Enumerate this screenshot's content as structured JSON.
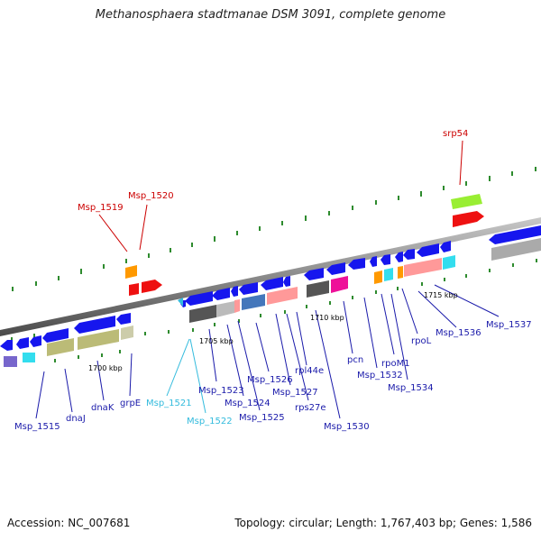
{
  "title": "Methanosphaera stadtmanae DSM 3091, complete genome",
  "footer": {
    "accession": "Accession: NC_007681",
    "summary": "Topology: circular; Length: 1,767,403 bp; Genes: 1,586"
  },
  "colors": {
    "background": "#ffffff",
    "backbone": "#8a8a8a",
    "ticks": "#2e8b2e",
    "label_blue": "#1a1aaa",
    "label_red": "#cc0000",
    "label_cyan": "#33bbdd",
    "gene_blue": "#1616ee",
    "gene_red": "#ee1111",
    "gene_orange": "#ff9900",
    "gene_lime": "#99ee33"
  },
  "scale_labels": [
    {
      "id": "kbp1700",
      "text": "1700 kbp"
    },
    {
      "id": "kbp1705",
      "text": "1705 kbp"
    },
    {
      "id": "kbp1710",
      "text": "1710 kbp"
    },
    {
      "id": "kbp1715",
      "text": "1715 kbp"
    }
  ],
  "gene_labels": [
    {
      "id": "srp54",
      "text": "srp54",
      "color": "red"
    },
    {
      "id": "msp1520",
      "text": "Msp_1520",
      "color": "red"
    },
    {
      "id": "msp1519",
      "text": "Msp_1519",
      "color": "red"
    },
    {
      "id": "msp1515",
      "text": "Msp_1515",
      "color": "blue"
    },
    {
      "id": "dnaJ",
      "text": "dnaJ",
      "color": "blue"
    },
    {
      "id": "dnaK",
      "text": "dnaK",
      "color": "blue"
    },
    {
      "id": "grpE",
      "text": "grpE",
      "color": "blue"
    },
    {
      "id": "msp1521",
      "text": "Msp_1521",
      "color": "cyan"
    },
    {
      "id": "msp1522",
      "text": "Msp_1522",
      "color": "cyan"
    },
    {
      "id": "msp1523",
      "text": "Msp_1523",
      "color": "blue"
    },
    {
      "id": "msp1524",
      "text": "Msp_1524",
      "color": "blue"
    },
    {
      "id": "msp1525",
      "text": "Msp_1525",
      "color": "blue"
    },
    {
      "id": "msp1526",
      "text": "Msp_1526",
      "color": "blue"
    },
    {
      "id": "msp1527",
      "text": "Msp_1527",
      "color": "blue"
    },
    {
      "id": "rps27e",
      "text": "rps27e",
      "color": "blue"
    },
    {
      "id": "rpl44e",
      "text": "rpl44e",
      "color": "blue"
    },
    {
      "id": "msp1530",
      "text": "Msp_1530",
      "color": "blue"
    },
    {
      "id": "pcn",
      "text": "pcn",
      "color": "blue"
    },
    {
      "id": "msp1532",
      "text": "Msp_1532",
      "color": "blue"
    },
    {
      "id": "rpoM1",
      "text": "rpoM1",
      "color": "blue"
    },
    {
      "id": "msp1534",
      "text": "Msp_1534",
      "color": "blue"
    },
    {
      "id": "rpoL",
      "text": "rpoL",
      "color": "blue"
    },
    {
      "id": "msp1536",
      "text": "Msp_1536",
      "color": "blue"
    },
    {
      "id": "msp1537",
      "text": "Msp_1537",
      "color": "blue"
    }
  ]
}
